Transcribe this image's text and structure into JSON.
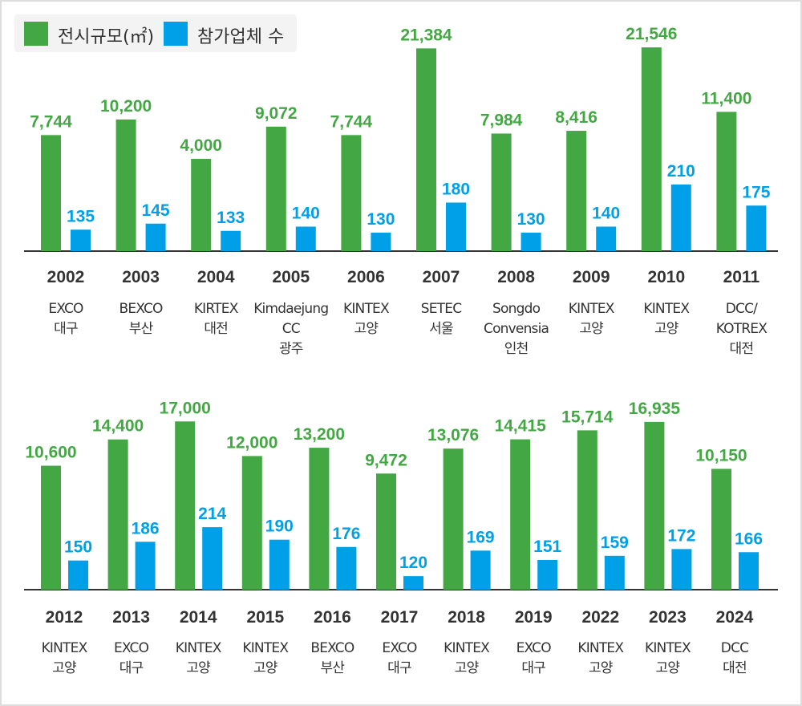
{
  "legend": {
    "area": "전시규모(㎡)",
    "exhibitors": "참가업체 수"
  },
  "colors": {
    "area": "#43a843",
    "exhibitors": "#00a0e9",
    "year": "#333333",
    "venue": "#333333"
  },
  "chart_data": [
    {
      "type": "bar",
      "series": [
        {
          "name": "전시규모(㎡)",
          "values": [
            7744,
            10200,
            4000,
            9072,
            7744,
            21384,
            7984,
            8416,
            21546,
            11400
          ]
        },
        {
          "name": "참가업체 수",
          "values": [
            135,
            145,
            133,
            140,
            130,
            180,
            130,
            140,
            210,
            175
          ]
        }
      ],
      "labels": [
        "7,744",
        "10,200",
        "4,000",
        "9,072",
        "7,744",
        "21,384",
        "7,984",
        "8,416",
        "21,546",
        "11,400"
      ],
      "categories": [
        "2002",
        "2003",
        "2004",
        "2005",
        "2006",
        "2007",
        "2008",
        "2009",
        "2010",
        "2011"
      ],
      "venues": [
        [
          "EXCO",
          "대구"
        ],
        [
          "BEXCO",
          "부산"
        ],
        [
          "KIRTEX",
          "대전"
        ],
        [
          "Kimdaejung",
          "CC",
          "광주"
        ],
        [
          "KINTEX",
          "고양"
        ],
        [
          "SETEC",
          "서울"
        ],
        [
          "Songdo",
          "Convensia",
          "인천"
        ],
        [
          "KINTEX",
          "고양"
        ],
        [
          "KINTEX",
          "고양"
        ],
        [
          "DCC/",
          "KOTREX",
          "대전"
        ]
      ],
      "legend": "top-left"
    },
    {
      "type": "bar",
      "series": [
        {
          "name": "전시규모(㎡)",
          "values": [
            10600,
            14400,
            17000,
            12000,
            13200,
            9472,
            13076,
            14415,
            15714,
            16935,
            10150
          ]
        },
        {
          "name": "참가업체 수",
          "values": [
            150,
            186,
            214,
            190,
            176,
            120,
            169,
            151,
            159,
            172,
            166
          ]
        }
      ],
      "labels": [
        "10,600",
        "14,400",
        "17,000",
        "12,000",
        "13,200",
        "9,472",
        "13,076",
        "14,415",
        "15,714",
        "16,935",
        "10,150"
      ],
      "categories": [
        "2012",
        "2013",
        "2014",
        "2015",
        "2016",
        "2017",
        "2018",
        "2019",
        "2022",
        "2023",
        "2024"
      ],
      "venues": [
        [
          "KINTEX",
          "고양"
        ],
        [
          "EXCO",
          "대구"
        ],
        [
          "KINTEX",
          "고양"
        ],
        [
          "KINTEX",
          "고양"
        ],
        [
          "BEXCO",
          "부산"
        ],
        [
          "EXCO",
          "대구"
        ],
        [
          "KINTEX",
          "고양"
        ],
        [
          "EXCO",
          "대구"
        ],
        [
          "KINTEX",
          "고양"
        ],
        [
          "KINTEX",
          "고양"
        ],
        [
          "DCC",
          "대전"
        ]
      ]
    }
  ]
}
